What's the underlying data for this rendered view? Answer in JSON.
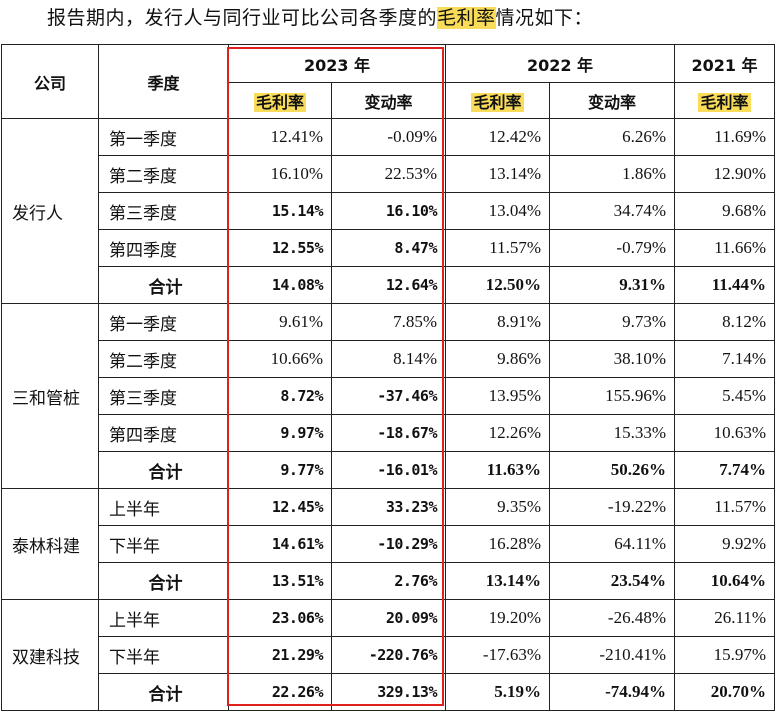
{
  "intro": {
    "before": "报告期内，发行人与同行业可比公司各季度的",
    "highlight": "毛利率",
    "after": "情况如下："
  },
  "headers": {
    "company": "公司",
    "period": "季度",
    "year2023": "2023 年",
    "year2022": "2022 年",
    "year2021": "2021 年",
    "gross_margin": "毛利率",
    "change_rate": "变动率"
  },
  "groups": [
    {
      "company": "发行人",
      "rows": [
        {
          "period": "第一季度",
          "gm2023": "12.41%",
          "chg2023": "-0.09%",
          "gm2022": "12.42%",
          "chg2022": "6.26%",
          "gm2021": "11.69%"
        },
        {
          "period": "第二季度",
          "gm2023": "16.10%",
          "chg2023": "22.53%",
          "gm2022": "13.14%",
          "chg2022": "1.86%",
          "gm2021": "12.90%"
        },
        {
          "period": "第三季度",
          "gm2023": "15.14%",
          "chg2023": "16.10%",
          "gm2022": "13.04%",
          "chg2022": "34.74%",
          "gm2021": "9.68%"
        },
        {
          "period": "第四季度",
          "gm2023": "12.55%",
          "chg2023": "8.47%",
          "gm2022": "11.57%",
          "chg2022": "-0.79%",
          "gm2021": "11.66%"
        },
        {
          "period": "合计",
          "gm2023": "14.08%",
          "chg2023": "12.64%",
          "gm2022": "12.50%",
          "chg2022": "9.31%",
          "gm2021": "11.44%"
        }
      ]
    },
    {
      "company": "三和管桩",
      "rows": [
        {
          "period": "第一季度",
          "gm2023": "9.61%",
          "chg2023": "7.85%",
          "gm2022": "8.91%",
          "chg2022": "9.73%",
          "gm2021": "8.12%"
        },
        {
          "period": "第二季度",
          "gm2023": "10.66%",
          "chg2023": "8.14%",
          "gm2022": "9.86%",
          "chg2022": "38.10%",
          "gm2021": "7.14%"
        },
        {
          "period": "第三季度",
          "gm2023": "8.72%",
          "chg2023": "-37.46%",
          "gm2022": "13.95%",
          "chg2022": "155.96%",
          "gm2021": "5.45%"
        },
        {
          "period": "第四季度",
          "gm2023": "9.97%",
          "chg2023": "-18.67%",
          "gm2022": "12.26%",
          "chg2022": "15.33%",
          "gm2021": "10.63%"
        },
        {
          "period": "合计",
          "gm2023": "9.77%",
          "chg2023": "-16.01%",
          "gm2022": "11.63%",
          "chg2022": "50.26%",
          "gm2021": "7.74%"
        }
      ]
    },
    {
      "company": "泰林科建",
      "rows": [
        {
          "period": "上半年",
          "gm2023": "12.45%",
          "chg2023": "33.23%",
          "gm2022": "9.35%",
          "chg2022": "-19.22%",
          "gm2021": "11.57%"
        },
        {
          "period": "下半年",
          "gm2023": "14.61%",
          "chg2023": "-10.29%",
          "gm2022": "16.28%",
          "chg2022": "64.11%",
          "gm2021": "9.92%"
        },
        {
          "period": "合计",
          "gm2023": "13.51%",
          "chg2023": "2.76%",
          "gm2022": "13.14%",
          "chg2022": "23.54%",
          "gm2021": "10.64%"
        }
      ]
    },
    {
      "company": "双建科技",
      "rows": [
        {
          "period": "上半年",
          "gm2023": "23.06%",
          "chg2023": "20.09%",
          "gm2022": "19.20%",
          "chg2022": "-26.48%",
          "gm2021": "26.11%"
        },
        {
          "period": "下半年",
          "gm2023": "21.29%",
          "chg2023": "-220.76%",
          "gm2022": "-17.63%",
          "chg2022": "-210.41%",
          "gm2021": "15.97%"
        },
        {
          "period": "合计",
          "gm2023": "22.26%",
          "chg2023": "329.13%",
          "gm2022": "5.19%",
          "chg2022": "-74.94%",
          "gm2021": "20.70%"
        }
      ]
    }
  ],
  "bold_2023_rows": [
    "0-2",
    "0-3",
    "0-4",
    "1-2",
    "1-3",
    "1-4",
    "2-0",
    "2-1",
    "2-2",
    "3-0",
    "3-1",
    "3-2"
  ],
  "colors": {
    "highlight": "#f8dc5a",
    "box": "#e0201c",
    "border": "#222222"
  }
}
